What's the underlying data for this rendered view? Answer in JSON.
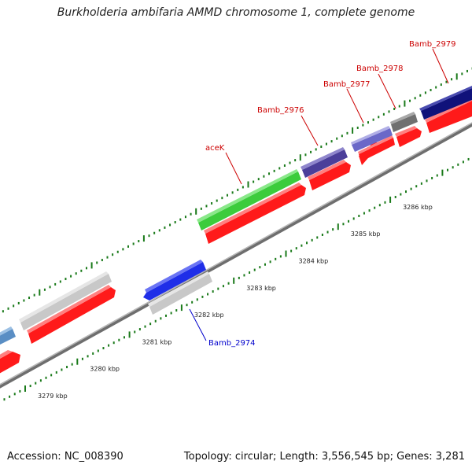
{
  "title": "Burkholderia ambifaria AMMD chromosome 1, complete genome",
  "footer": {
    "accession": "Accession: NC_008390",
    "summary": "Topology: circular; Length: 3,556,545 bp; Genes: 3,281"
  },
  "colors": {
    "red_strand": "#ff1a1a",
    "backbone": "#909090",
    "tick": "#1a7a1a",
    "label_red": "#cc0000",
    "label_blue": "#0000cc"
  },
  "scale": {
    "unit": "kbp",
    "ticks": [
      {
        "value": 3279,
        "label": "3279 kbp"
      },
      {
        "value": 3280,
        "label": "3280 kbp"
      },
      {
        "value": 3281,
        "label": "3281 kbp"
      },
      {
        "value": 3282,
        "label": "3282 kbp"
      },
      {
        "value": 3283,
        "label": "3283 kbp"
      },
      {
        "value": 3284,
        "label": "3284 kbp"
      },
      {
        "value": 3285,
        "label": "3285 kbp"
      },
      {
        "value": 3286,
        "label": "3286 kbp"
      }
    ]
  },
  "genes": [
    {
      "name": "",
      "color": "#5a8ec4",
      "strand": "outer"
    },
    {
      "name": "",
      "color": "#c8c8c8",
      "strand": "outer"
    },
    {
      "name": "Bamb_2974",
      "color": "#1f2ee8",
      "strand": "outer",
      "label_color": "#0000cc"
    },
    {
      "name": "",
      "color": "#c8c8c8",
      "strand": "inner"
    },
    {
      "name": "aceK",
      "color": "#3ccc3c",
      "strand": "outer",
      "label_color": "#cc0000"
    },
    {
      "name": "Bamb_2976",
      "color": "#4b3f9a",
      "strand": "outer",
      "label_color": "#cc0000"
    },
    {
      "name": "Bamb_2977",
      "color": "#6a68c8",
      "strand": "outer",
      "label_color": "#cc0000"
    },
    {
      "name": "Bamb_2978",
      "color": "#707070",
      "strand": "outer",
      "label_color": "#cc0000"
    },
    {
      "name": "Bamb_2979",
      "color": "#10127a",
      "strand": "outer",
      "label_color": "#cc0000"
    }
  ]
}
